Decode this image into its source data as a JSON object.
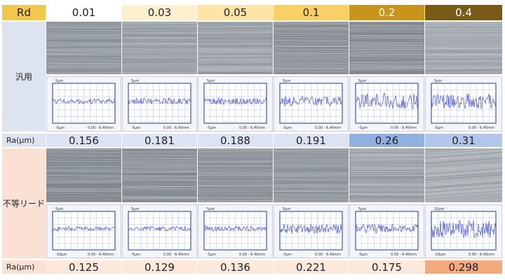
{
  "header": {
    "rd_label": "Rd",
    "columns": [
      "0.01",
      "0.03",
      "0.05",
      "0.1",
      "0.2",
      "0.4"
    ],
    "colors": [
      "#ffffff",
      "#fdf0cf",
      "#fde4a6",
      "#f9cf66",
      "#c7941c",
      "#7a5a17"
    ]
  },
  "rows": [
    {
      "label": "汎用",
      "ra_label": "Ra(μm)",
      "ra_values": [
        "0.156",
        "0.181",
        "0.188",
        "0.191",
        "0.26",
        "0.31"
      ],
      "label_bg": "#dde3f1",
      "value_bg": [
        "#dce3f2",
        "#dce3f2",
        "#dce3f2",
        "#dce3f2",
        "#8fb0e0",
        "#b0c6ea"
      ],
      "plots": [
        {
          "top": "5μm",
          "bottom": "-5μm",
          "range": "0.00 - 6.40mm"
        },
        {
          "top": "5μm",
          "bottom": "-5μm",
          "range": "0.00 - 6.40mm"
        },
        {
          "top": "5μm",
          "bottom": "-5μm",
          "range": "0.00 - 6.40mm"
        },
        {
          "top": "5μm",
          "bottom": "-5μm",
          "range": "0.00 - 6.40mm"
        },
        {
          "top": "5μm",
          "bottom": "-5μm",
          "range": "0.00 - 6.40mm"
        },
        {
          "top": "5μm",
          "bottom": "-5μm",
          "range": "0.00 - 6.40mm"
        }
      ]
    },
    {
      "label": "不等リード",
      "ra_label": "Ra(μm)",
      "ra_values": [
        "0.125",
        "0.129",
        "0.136",
        "0.221",
        "0.175",
        "0.298"
      ],
      "label_bg": "#fbe1d3",
      "value_bg": [
        "#fde8dc",
        "#fde8dc",
        "#fde8dc",
        "#fde8dc",
        "#fde8dc",
        "#f5a97f"
      ],
      "plots": [
        {
          "top": "5μm",
          "bottom": "-10μm",
          "range": "0.00 - 6.40mm"
        },
        {
          "top": "5μm",
          "bottom": "-5μm",
          "range": "0.00 - 6.40mm"
        },
        {
          "top": "5μm",
          "bottom": "-5μm",
          "range": "0.00 - 6.40mm"
        },
        {
          "top": "5μm",
          "bottom": "-5μm",
          "range": "0.00 - 6.40mm"
        },
        {
          "top": "5μm",
          "bottom": "-5μm",
          "range": "0.00 - 6.40mm"
        },
        {
          "top": "10μm",
          "bottom": "-10μm",
          "range": "0.00 - 6.40mm"
        }
      ]
    }
  ]
}
